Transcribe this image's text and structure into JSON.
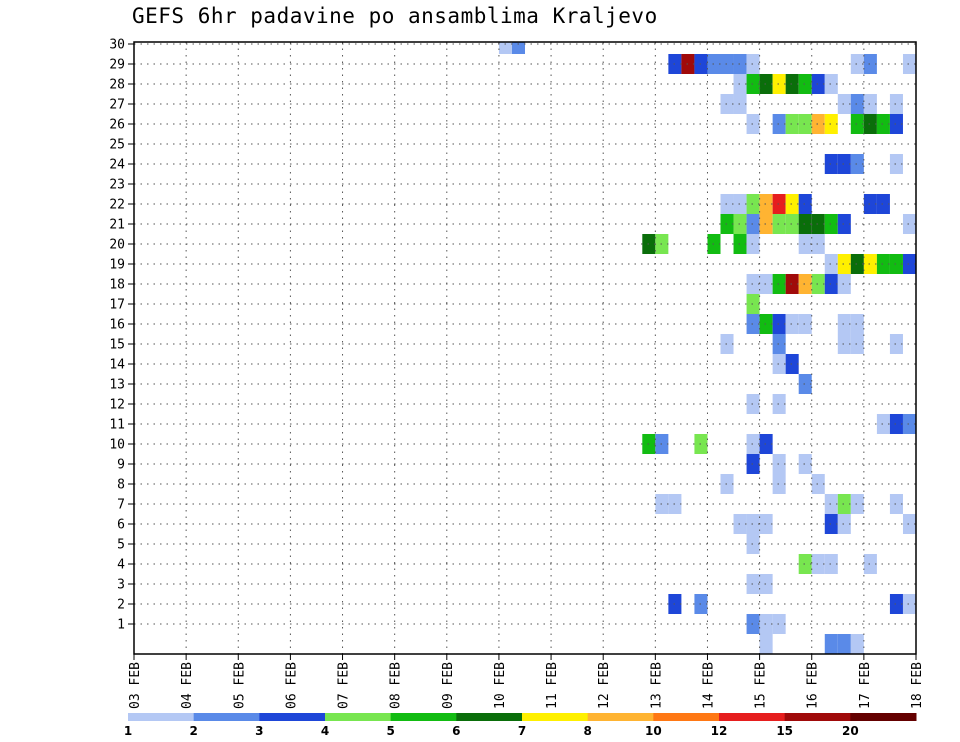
{
  "chart_data": {
    "type": "heatmap",
    "title": "GEFS 6hr padavine po ansamblima Kraljevo",
    "x_tick_labels": [
      "03 FEB",
      "04 FEB",
      "05 FEB",
      "06 FEB",
      "07 FEB",
      "08 FEB",
      "09 FEB",
      "10 FEB",
      "11 FEB",
      "12 FEB",
      "13 FEB",
      "14 FEB",
      "15 FEB",
      "16 FEB",
      "17 FEB",
      "18 FEB"
    ],
    "y_tick_labels": [
      "1",
      "2",
      "3",
      "4",
      "5",
      "6",
      "7",
      "8",
      "9",
      "10",
      "11",
      "12",
      "13",
      "14",
      "15",
      "16",
      "17",
      "18",
      "19",
      "20",
      "21",
      "22",
      "23",
      "24",
      "25",
      "26",
      "27",
      "28",
      "29",
      "30"
    ],
    "x_range_days": [
      0,
      15
    ],
    "steps_per_day": 4,
    "y_range_members": [
      0,
      30
    ],
    "grid": true,
    "colorbar": {
      "labels": [
        "1",
        "2",
        "3",
        "4",
        "5",
        "6",
        "7",
        "8",
        "10",
        "12",
        "15",
        "20"
      ],
      "colors": [
        "#b4c8f4",
        "#5a8ae8",
        "#1e46d8",
        "#78e650",
        "#12bc12",
        "#0a6e0a",
        "#fff000",
        "#ffb432",
        "#ff7814",
        "#e61e1e",
        "#a00a0a",
        "#640000"
      ]
    },
    "cells": [
      [
        30,
        29,
        1
      ],
      [
        30,
        29,
        2
      ],
      [
        30,
        28,
        1
      ],
      [
        29,
        41,
        3
      ],
      [
        29,
        42,
        11
      ],
      [
        29,
        43,
        3
      ],
      [
        29,
        44,
        2
      ],
      [
        29,
        45,
        2
      ],
      [
        29,
        46,
        2
      ],
      [
        29,
        47,
        1
      ],
      [
        29,
        55,
        1
      ],
      [
        29,
        56,
        2
      ],
      [
        29,
        59,
        1
      ],
      [
        28,
        46,
        1
      ],
      [
        28,
        47,
        5
      ],
      [
        28,
        48,
        6
      ],
      [
        28,
        49,
        7
      ],
      [
        28,
        50,
        6
      ],
      [
        28,
        51,
        5
      ],
      [
        28,
        52,
        3
      ],
      [
        28,
        53,
        1
      ],
      [
        28,
        66,
        1
      ],
      [
        27,
        45,
        1
      ],
      [
        27,
        46,
        1
      ],
      [
        27,
        54,
        1
      ],
      [
        27,
        55,
        2
      ],
      [
        27,
        56,
        1
      ],
      [
        27,
        58,
        1
      ],
      [
        26,
        47,
        1
      ],
      [
        26,
        49,
        2
      ],
      [
        26,
        50,
        4
      ],
      [
        26,
        51,
        4
      ],
      [
        26,
        52,
        8
      ],
      [
        26,
        53,
        7
      ],
      [
        26,
        55,
        5
      ],
      [
        26,
        56,
        6
      ],
      [
        26,
        57,
        5
      ],
      [
        26,
        58,
        3
      ],
      [
        26,
        62,
        1
      ],
      [
        26,
        63,
        1
      ],
      [
        26,
        64,
        2
      ],
      [
        26,
        65,
        1
      ],
      [
        24,
        53,
        3
      ],
      [
        24,
        54,
        3
      ],
      [
        24,
        55,
        2
      ],
      [
        24,
        58,
        1
      ],
      [
        23,
        64,
        1
      ],
      [
        23,
        65,
        1
      ],
      [
        22,
        45,
        1
      ],
      [
        22,
        46,
        1
      ],
      [
        22,
        47,
        4
      ],
      [
        22,
        48,
        8
      ],
      [
        22,
        49,
        10
      ],
      [
        22,
        50,
        7
      ],
      [
        22,
        51,
        3
      ],
      [
        22,
        56,
        3
      ],
      [
        22,
        57,
        3
      ],
      [
        22,
        61,
        1
      ],
      [
        22,
        62,
        1
      ],
      [
        21,
        45,
        5
      ],
      [
        21,
        46,
        4
      ],
      [
        21,
        47,
        2
      ],
      [
        21,
        48,
        8
      ],
      [
        21,
        49,
        4
      ],
      [
        21,
        50,
        4
      ],
      [
        21,
        51,
        6
      ],
      [
        21,
        52,
        6
      ],
      [
        21,
        53,
        5
      ],
      [
        21,
        54,
        3
      ],
      [
        21,
        59,
        1
      ],
      [
        21,
        60,
        1
      ],
      [
        20,
        39,
        6
      ],
      [
        20,
        40,
        4
      ],
      [
        20,
        44,
        5
      ],
      [
        20,
        46,
        5
      ],
      [
        20,
        47,
        1
      ],
      [
        20,
        51,
        1
      ],
      [
        20,
        52,
        1
      ],
      [
        20,
        65,
        1
      ],
      [
        19,
        53,
        1
      ],
      [
        19,
        54,
        7
      ],
      [
        19,
        55,
        6
      ],
      [
        19,
        56,
        7
      ],
      [
        19,
        57,
        5
      ],
      [
        19,
        58,
        5
      ],
      [
        19,
        59,
        3
      ],
      [
        19,
        60,
        2
      ],
      [
        18,
        47,
        1
      ],
      [
        18,
        48,
        1
      ],
      [
        18,
        49,
        5
      ],
      [
        18,
        50,
        11
      ],
      [
        18,
        51,
        8
      ],
      [
        18,
        52,
        4
      ],
      [
        18,
        53,
        3
      ],
      [
        18,
        54,
        1
      ],
      [
        17,
        47,
        4
      ],
      [
        17,
        65,
        1
      ],
      [
        16,
        47,
        2
      ],
      [
        16,
        48,
        5
      ],
      [
        16,
        49,
        3
      ],
      [
        16,
        50,
        1
      ],
      [
        16,
        51,
        1
      ],
      [
        16,
        54,
        1
      ],
      [
        16,
        55,
        1
      ],
      [
        16,
        60,
        1
      ],
      [
        16,
        62,
        2
      ],
      [
        16,
        63,
        2
      ],
      [
        16,
        69,
        1
      ],
      [
        15,
        45,
        1
      ],
      [
        15,
        49,
        2
      ],
      [
        15,
        54,
        1
      ],
      [
        15,
        55,
        1
      ],
      [
        15,
        58,
        1
      ],
      [
        15,
        60,
        1
      ],
      [
        15,
        62,
        2
      ],
      [
        15,
        63,
        2
      ],
      [
        14,
        49,
        1
      ],
      [
        14,
        50,
        3
      ],
      [
        13,
        51,
        2
      ],
      [
        13,
        65,
        1
      ],
      [
        13,
        66,
        5
      ],
      [
        13,
        68,
        4
      ],
      [
        12,
        47,
        1
      ],
      [
        12,
        49,
        1
      ],
      [
        11,
        57,
        1
      ],
      [
        11,
        58,
        3
      ],
      [
        11,
        59,
        2
      ],
      [
        11,
        60,
        3
      ],
      [
        11,
        61,
        1
      ],
      [
        11,
        62,
        1
      ],
      [
        11,
        63,
        1
      ],
      [
        11,
        64,
        1
      ],
      [
        11,
        65,
        1
      ],
      [
        11,
        66,
        1
      ],
      [
        11,
        67,
        1
      ],
      [
        11,
        69,
        2
      ],
      [
        10,
        39,
        5
      ],
      [
        10,
        40,
        2
      ],
      [
        10,
        43,
        4
      ],
      [
        10,
        47,
        1
      ],
      [
        10,
        48,
        3
      ],
      [
        9,
        47,
        3
      ],
      [
        9,
        49,
        1
      ],
      [
        9,
        51,
        1
      ],
      [
        8,
        45,
        1
      ],
      [
        8,
        49,
        1
      ],
      [
        8,
        52,
        1
      ],
      [
        8,
        65,
        1
      ],
      [
        8,
        66,
        8
      ],
      [
        8,
        67,
        11
      ],
      [
        8,
        68,
        9
      ],
      [
        8,
        69,
        2
      ],
      [
        7,
        40,
        1
      ],
      [
        7,
        41,
        1
      ],
      [
        7,
        53,
        1
      ],
      [
        7,
        54,
        4
      ],
      [
        7,
        55,
        1
      ],
      [
        7,
        58,
        1
      ],
      [
        7,
        63,
        2
      ],
      [
        6,
        46,
        1
      ],
      [
        6,
        47,
        1
      ],
      [
        6,
        48,
        1
      ],
      [
        6,
        53,
        3
      ],
      [
        6,
        54,
        1
      ],
      [
        6,
        59,
        1
      ],
      [
        6,
        60,
        1
      ],
      [
        6,
        61,
        1
      ],
      [
        5,
        47,
        1
      ],
      [
        5,
        63,
        1
      ],
      [
        5,
        65,
        1
      ],
      [
        5,
        66,
        2
      ],
      [
        4,
        51,
        4
      ],
      [
        4,
        52,
        1
      ],
      [
        4,
        53,
        1
      ],
      [
        4,
        56,
        1
      ],
      [
        4,
        60,
        1
      ],
      [
        4,
        61,
        2
      ],
      [
        3,
        47,
        1
      ],
      [
        3,
        48,
        1
      ],
      [
        2,
        41,
        3
      ],
      [
        2,
        43,
        2
      ],
      [
        2,
        58,
        3
      ],
      [
        2,
        59,
        1
      ],
      [
        2,
        60,
        4
      ],
      [
        2,
        61,
        6
      ],
      [
        2,
        62,
        2
      ],
      [
        2,
        63,
        2
      ],
      [
        1,
        47,
        2
      ],
      [
        1,
        48,
        1
      ],
      [
        1,
        49,
        1
      ],
      [
        1,
        62,
        5
      ],
      [
        1,
        63,
        2
      ],
      [
        0,
        48,
        1
      ],
      [
        0,
        53,
        2
      ],
      [
        0,
        54,
        2
      ],
      [
        0,
        55,
        1
      ],
      [
        0,
        62,
        3
      ],
      [
        0,
        63,
        3
      ],
      [
        0,
        65,
        2
      ],
      [
        0,
        66,
        2
      ],
      [
        0,
        67,
        7
      ],
      [
        0,
        68,
        9
      ],
      [
        0,
        69,
        4
      ],
      [
        0,
        70,
        5
      ]
    ]
  }
}
